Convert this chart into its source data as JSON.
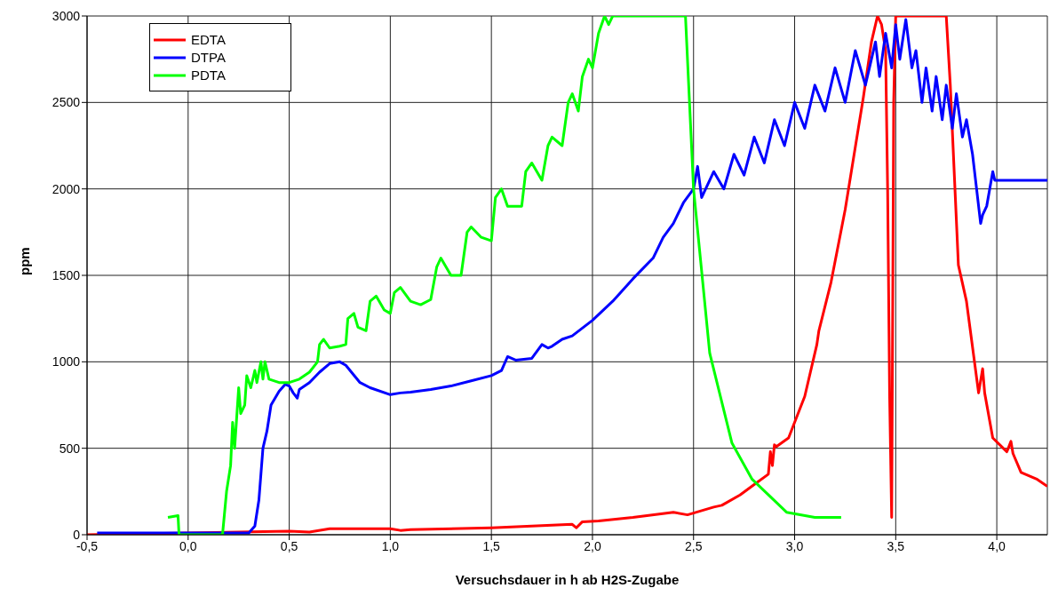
{
  "chart_data": {
    "type": "line",
    "xlabel": "Versuchsdauer in h ab H2S-Zugabe",
    "ylabel": "ppm",
    "xlim": [
      -0.5,
      4.25
    ],
    "ylim": [
      0,
      3000
    ],
    "xticks": [
      {
        "value": -0.5,
        "label": "-0,5"
      },
      {
        "value": 0,
        "label": "0,0"
      },
      {
        "value": 0.5,
        "label": "0,5"
      },
      {
        "value": 1,
        "label": "1,0"
      },
      {
        "value": 1.5,
        "label": "1,5"
      },
      {
        "value": 2,
        "label": "2,0"
      },
      {
        "value": 2.5,
        "label": "2,5"
      },
      {
        "value": 3,
        "label": "3,0"
      },
      {
        "value": 3.5,
        "label": "3,5"
      },
      {
        "value": 4,
        "label": "4,0"
      }
    ],
    "yticks": [
      0,
      500,
      1000,
      1500,
      2000,
      2500,
      3000
    ],
    "grid": true,
    "legend": "top left",
    "marker": "none",
    "line_style": "solid",
    "series": [
      {
        "name": "EDTA",
        "color": "#ff0000",
        "x": [
          -0.5,
          0.5,
          0.6,
          0.7,
          1.0,
          1.05,
          1.1,
          1.5,
          1.8,
          1.9,
          1.92,
          1.95,
          2.03,
          2.2,
          2.4,
          2.47,
          2.6,
          2.64,
          2.73,
          2.8,
          2.87,
          2.88,
          2.89,
          2.9,
          2.91,
          2.97,
          3.05,
          3.11,
          3.12,
          3.18,
          3.25,
          3.34,
          3.38,
          3.41,
          3.43,
          3.45,
          3.46,
          3.47,
          3.48,
          3.49,
          3.5,
          3.73,
          3.75,
          3.77,
          3.81,
          3.85,
          3.91,
          3.93,
          3.94,
          3.98,
          4.05,
          4.07,
          4.08,
          4.12,
          4.2,
          4.25
        ],
        "values": [
          0,
          20,
          15,
          35,
          35,
          25,
          30,
          40,
          55,
          60,
          40,
          75,
          80,
          100,
          130,
          115,
          160,
          170,
          230,
          290,
          350,
          480,
          400,
          520,
          510,
          560,
          800,
          1100,
          1180,
          1460,
          1880,
          2530,
          2850,
          3000,
          2950,
          2800,
          2000,
          800,
          100,
          2500,
          3000,
          3000,
          3000,
          2600,
          1560,
          1350,
          820,
          960,
          820,
          560,
          480,
          540,
          470,
          360,
          320,
          280
        ]
      },
      {
        "name": "DTPA",
        "color": "#0000ff",
        "x": [
          -0.45,
          0.3,
          0.33,
          0.35,
          0.37,
          0.39,
          0.41,
          0.45,
          0.48,
          0.5,
          0.52,
          0.54,
          0.55,
          0.6,
          0.65,
          0.7,
          0.75,
          0.78,
          0.85,
          0.9,
          1.0,
          1.05,
          1.1,
          1.2,
          1.3,
          1.4,
          1.5,
          1.55,
          1.58,
          1.62,
          1.7,
          1.75,
          1.78,
          1.8,
          1.85,
          1.9,
          2.0,
          2.1,
          2.2,
          2.3,
          2.35,
          2.4,
          2.45,
          2.5,
          2.52,
          2.54,
          2.6,
          2.65,
          2.7,
          2.75,
          2.8,
          2.85,
          2.9,
          2.95,
          3.0,
          3.05,
          3.1,
          3.15,
          3.2,
          3.25,
          3.3,
          3.35,
          3.4,
          3.42,
          3.45,
          3.48,
          3.5,
          3.52,
          3.55,
          3.58,
          3.6,
          3.63,
          3.65,
          3.68,
          3.7,
          3.73,
          3.75,
          3.78,
          3.8,
          3.83,
          3.85,
          3.88,
          3.9,
          3.92,
          3.93,
          3.95,
          3.98,
          3.99,
          4.25
        ],
        "values": [
          10,
          10,
          50,
          200,
          500,
          600,
          750,
          830,
          870,
          860,
          820,
          790,
          840,
          880,
          940,
          990,
          1000,
          980,
          880,
          850,
          810,
          820,
          825,
          840,
          860,
          890,
          920,
          950,
          1030,
          1010,
          1020,
          1100,
          1080,
          1090,
          1130,
          1150,
          1240,
          1350,
          1480,
          1600,
          1720,
          1800,
          1920,
          2000,
          2130,
          1950,
          2100,
          2000,
          2200,
          2080,
          2300,
          2150,
          2400,
          2250,
          2500,
          2350,
          2600,
          2450,
          2700,
          2500,
          2800,
          2600,
          2850,
          2650,
          2900,
          2700,
          2950,
          2750,
          2980,
          2700,
          2800,
          2500,
          2700,
          2450,
          2650,
          2400,
          2600,
          2350,
          2550,
          2300,
          2400,
          2200,
          2000,
          1800,
          1850,
          1900,
          2100,
          2050,
          2050
        ]
      },
      {
        "name": "PDTA",
        "color": "#00ff00",
        "x": [
          -0.1,
          -0.05,
          -0.045,
          0.17,
          0.19,
          0.21,
          0.22,
          0.23,
          0.25,
          0.26,
          0.28,
          0.29,
          0.31,
          0.33,
          0.34,
          0.36,
          0.37,
          0.38,
          0.4,
          0.45,
          0.5,
          0.55,
          0.6,
          0.64,
          0.65,
          0.67,
          0.7,
          0.75,
          0.78,
          0.79,
          0.82,
          0.84,
          0.88,
          0.9,
          0.93,
          0.97,
          1.0,
          1.02,
          1.05,
          1.1,
          1.15,
          1.2,
          1.23,
          1.25,
          1.3,
          1.35,
          1.38,
          1.4,
          1.45,
          1.5,
          1.52,
          1.55,
          1.58,
          1.65,
          1.67,
          1.7,
          1.75,
          1.78,
          1.8,
          1.85,
          1.88,
          1.9,
          1.93,
          1.95,
          1.98,
          2.0,
          2.03,
          2.06,
          2.08,
          2.1,
          2.46,
          2.5,
          2.58,
          2.69,
          2.79,
          2.96,
          3.1,
          3.23
        ],
        "values": [
          100,
          110,
          0,
          0,
          250,
          400,
          650,
          500,
          850,
          700,
          750,
          920,
          850,
          950,
          880,
          1000,
          900,
          1000,
          900,
          880,
          880,
          900,
          940,
          1000,
          1100,
          1130,
          1080,
          1090,
          1100,
          1250,
          1280,
          1200,
          1180,
          1350,
          1380,
          1300,
          1280,
          1400,
          1430,
          1350,
          1330,
          1360,
          1550,
          1600,
          1500,
          1500,
          1750,
          1780,
          1720,
          1700,
          1950,
          2000,
          1900,
          1900,
          2100,
          2150,
          2050,
          2250,
          2300,
          2250,
          2500,
          2550,
          2450,
          2650,
          2750,
          2700,
          2900,
          3000,
          2950,
          3000,
          3000,
          2000,
          1050,
          530,
          320,
          130,
          100,
          100
        ]
      }
    ]
  }
}
